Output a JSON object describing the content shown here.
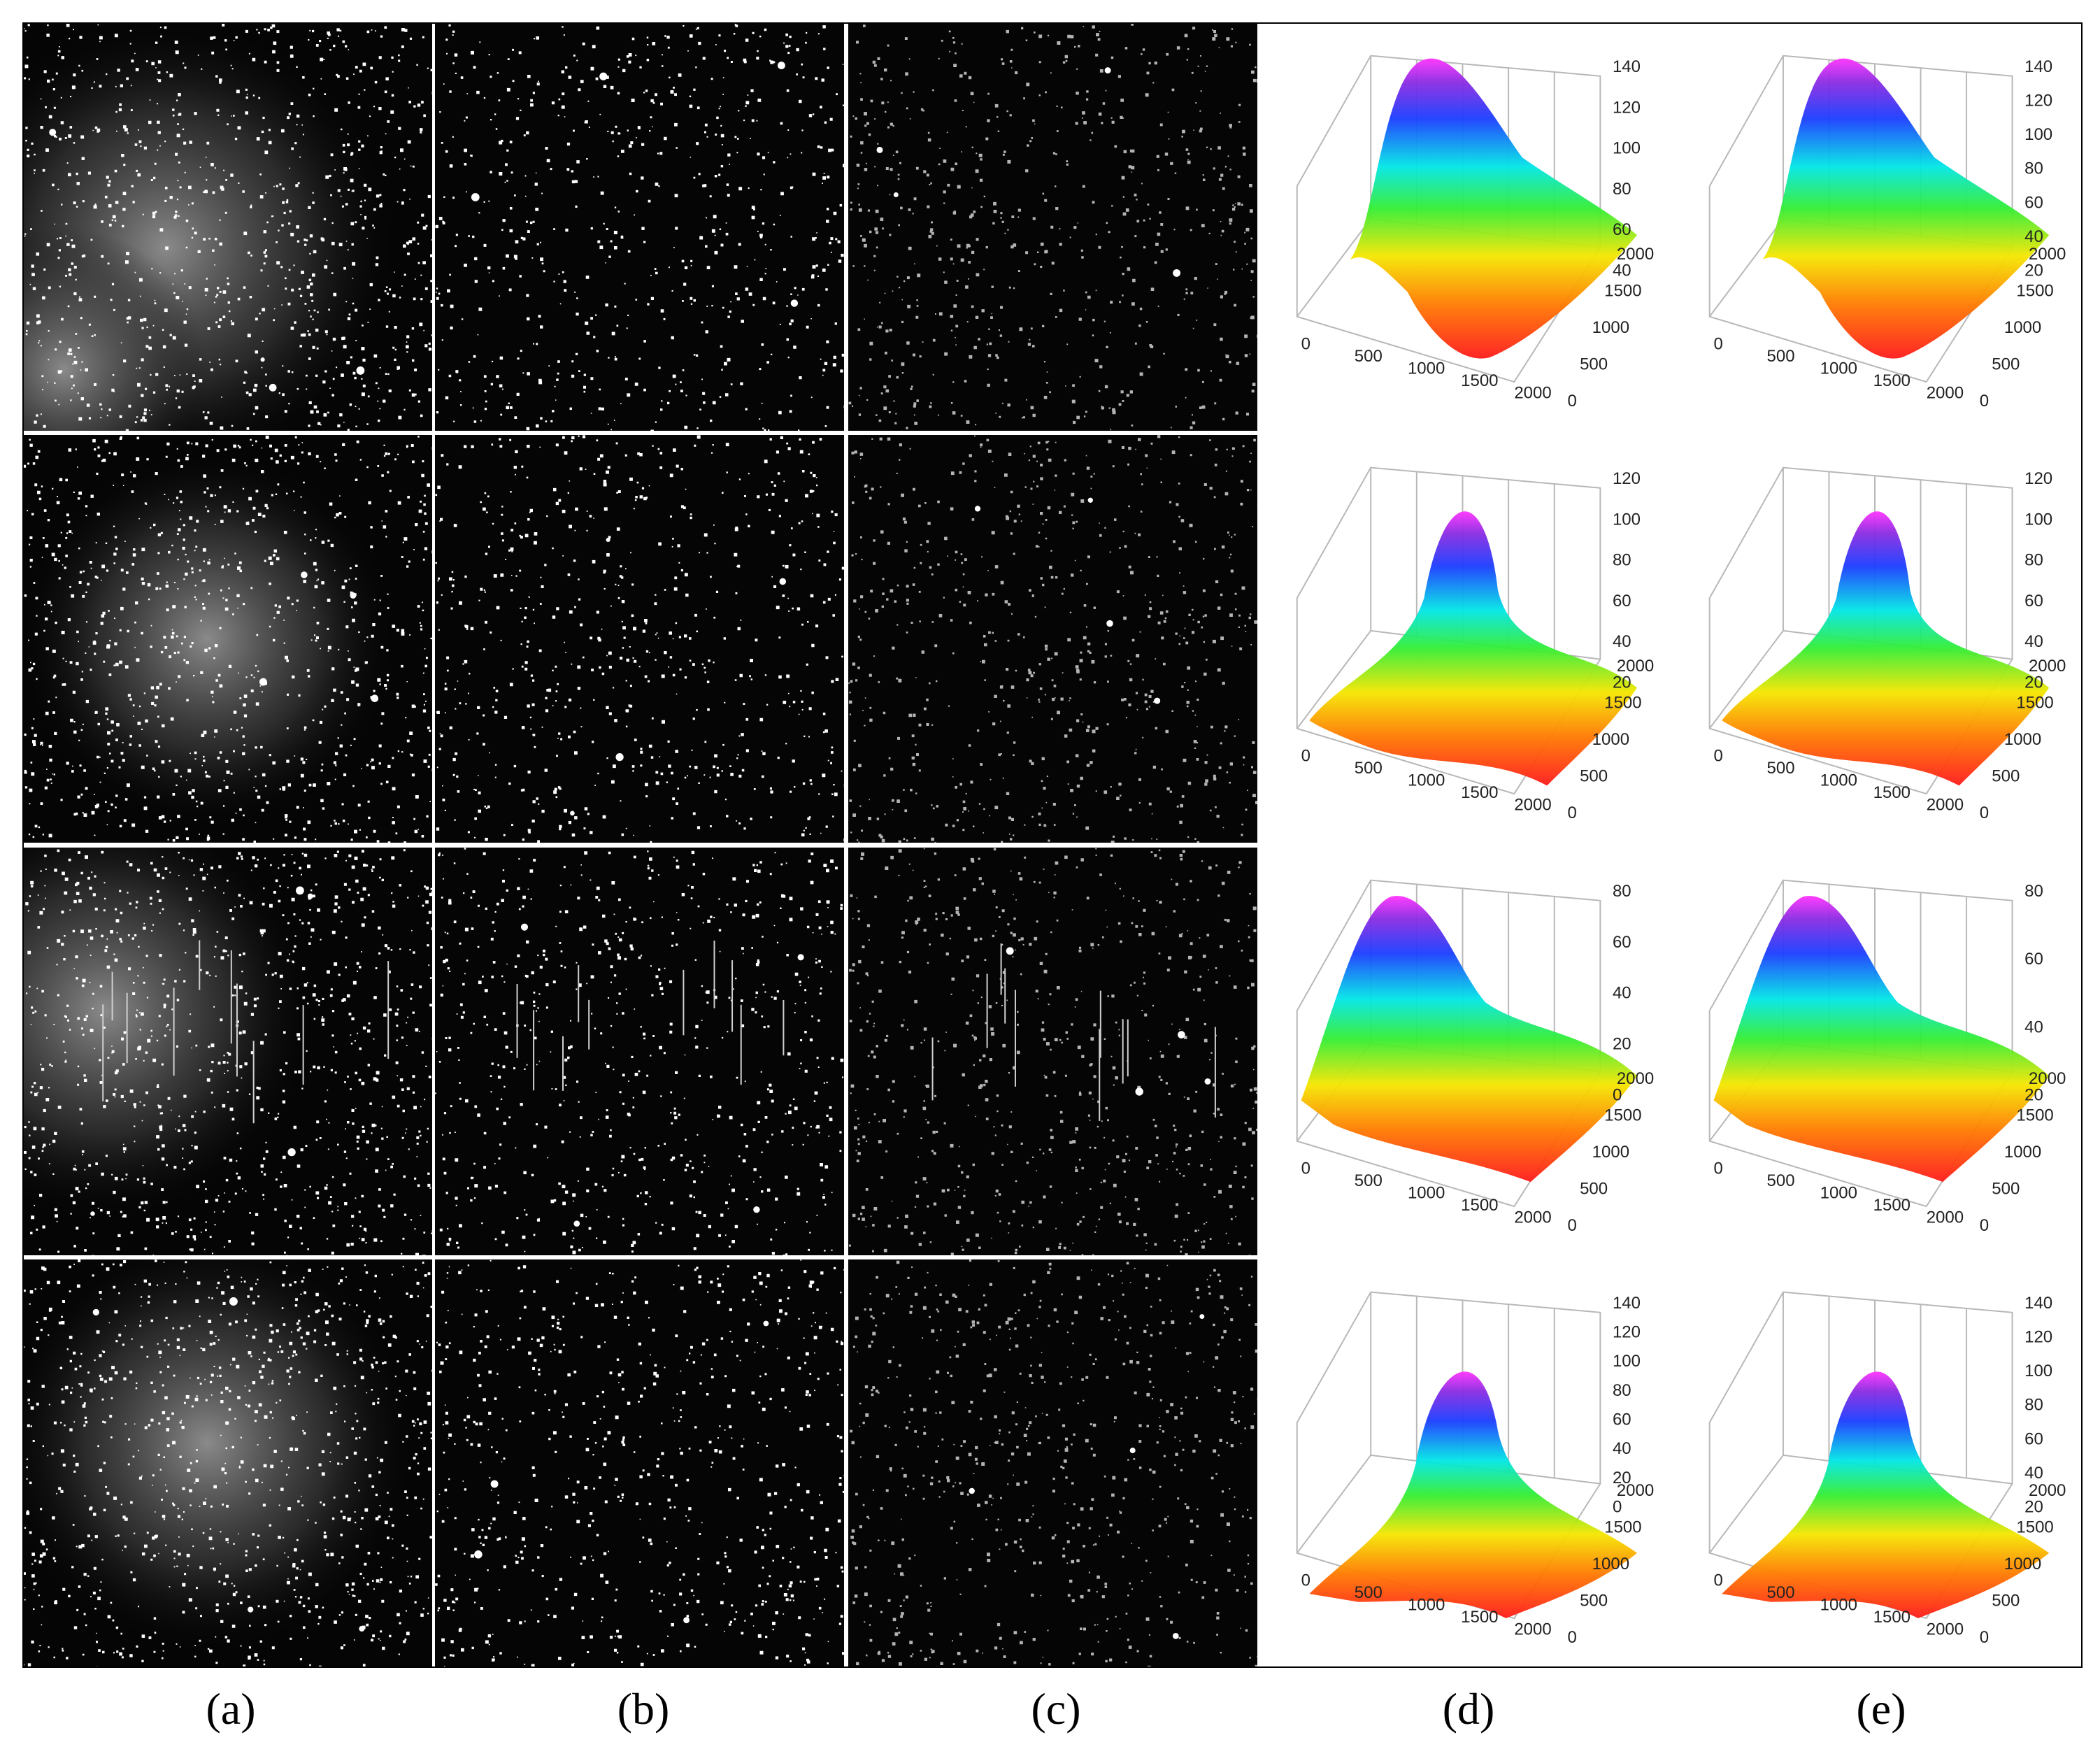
{
  "figure": {
    "column_labels": [
      "(a)",
      "(b)",
      "(c)",
      "(d)",
      "(e)"
    ],
    "rows": [
      {
        "z_ticks_d": [
          "40",
          "60",
          "80",
          "100",
          "120",
          "140"
        ],
        "z_ticks_e": [
          "20",
          "40",
          "60",
          "80",
          "100",
          "120",
          "140"
        ]
      },
      {
        "z_ticks_d": [
          "20",
          "40",
          "60",
          "80",
          "100",
          "120"
        ],
        "z_ticks_e": [
          "20",
          "40",
          "60",
          "80",
          "100",
          "120"
        ]
      },
      {
        "z_ticks_d": [
          "0",
          "20",
          "40",
          "60",
          "80"
        ],
        "z_ticks_e": [
          "20",
          "40",
          "60",
          "80"
        ]
      },
      {
        "z_ticks_d": [
          "0",
          "20",
          "40",
          "60",
          "80",
          "100",
          "120",
          "140"
        ],
        "z_ticks_e": [
          "20",
          "40",
          "60",
          "80",
          "100",
          "120",
          "140"
        ]
      }
    ],
    "x_ticks": [
      "0",
      "500",
      "1000",
      "1500",
      "2000"
    ],
    "y_ticks": [
      "0",
      "500",
      "1000",
      "1500",
      "2000"
    ]
  }
}
